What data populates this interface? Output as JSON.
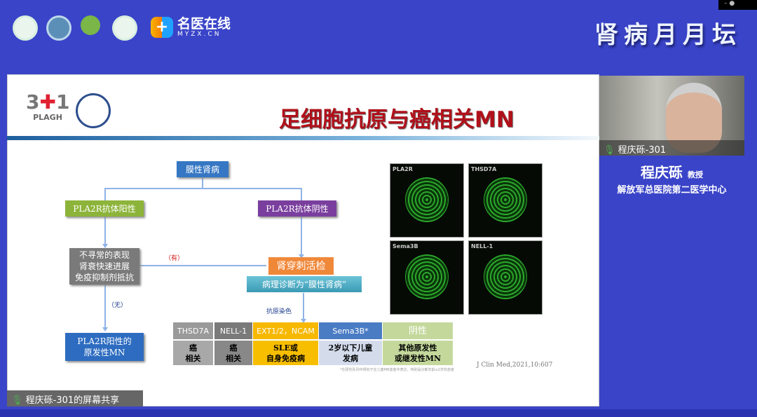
{
  "header": {
    "brand_name": "名医在线",
    "brand_url": "MYZX.CN",
    "forum_title": "肾病月月坛",
    "window_controls": "–  ●"
  },
  "slide": {
    "title": "足细胞抗原与癌相关MN",
    "logo_text": "PLAGH",
    "flow": {
      "root": "膜性肾病",
      "positive": "PLA2R抗体阳性",
      "negative": "PLA2R抗体阴性",
      "unusual": [
        "不寻常的表现",
        "肾衰快速进展",
        "免疫抑制剂抵抗"
      ],
      "yes_label": "（有）",
      "no_label": "（无）",
      "primary": [
        "PLA2R阳性的",
        "原发性MN"
      ],
      "biopsy": "肾穿刺活检",
      "diagnosis": "病理诊断为“膜性肾病”",
      "staining": "抗原染色"
    },
    "table": {
      "headers": [
        "THSD7A",
        "NELL-1",
        "EXT1/2，NCAM",
        "Sema3B*",
        "阴性"
      ],
      "cells": [
        [
          "癌",
          "相关"
        ],
        [
          "癌",
          "相关"
        ],
        [
          "SLE或",
          "自身免疫病"
        ],
        [
          "2岁以下儿童",
          "发病"
        ],
        [
          "其他原发性",
          "或继发性MN"
        ]
      ]
    },
    "footnote": "*在研究队列中倾向于在儿童MN患者中表达，特别是诊断年龄≤2岁的患者",
    "citation": "J Clin Med,2021,10:607",
    "images": [
      "PLA2R",
      "THSD7A",
      "Sema3B",
      "NELL-1"
    ]
  },
  "speaker": {
    "video_label": "程庆砾-301",
    "name": "程庆砾",
    "title": "教授",
    "org": "解放军总医院第二医学中心"
  },
  "share_label": "程庆砾-301的屏幕共享",
  "colors": {
    "background": "#3a44c8",
    "title_red": "#b0101a",
    "green": "#8db43a",
    "purple": "#7a3f9e",
    "orange": "#f0883a",
    "teal": "#4aaec4"
  }
}
